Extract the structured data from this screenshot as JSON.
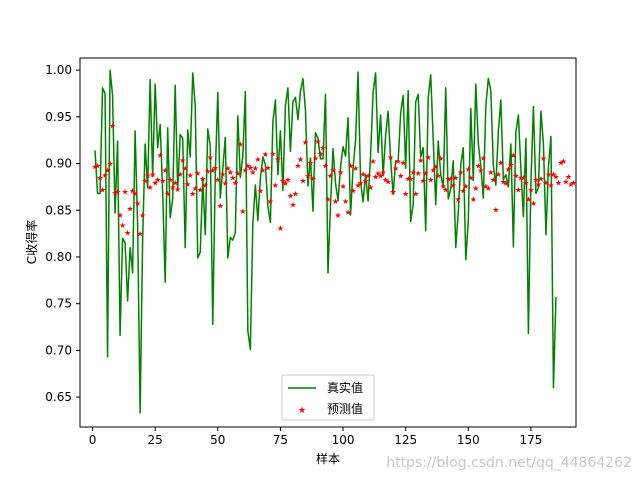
{
  "chart_data": {
    "type": "line",
    "xlabel": "样本",
    "ylabel": "C收得率",
    "xlim": [
      -5,
      193
    ],
    "ylim": [
      0.618,
      1.013
    ],
    "xticks": [
      0,
      25,
      50,
      75,
      100,
      125,
      150,
      175
    ],
    "yticks": [
      0.65,
      0.7,
      0.75,
      0.8,
      0.85,
      0.9,
      0.95,
      1.0
    ],
    "ytick_labels": [
      "0.65",
      "0.70",
      "0.75",
      "0.80",
      "0.85",
      "0.90",
      "0.95",
      "1.00"
    ],
    "legend_position": "lower center",
    "grid": false,
    "series": [
      {
        "name": "真实值",
        "style": "line",
        "color": "#008000",
        "values": [
          0.914,
          0.868,
          0.868,
          0.981,
          0.975,
          0.693,
          1.0,
          0.973,
          0.847,
          0.924,
          0.716,
          0.82,
          0.815,
          0.753,
          0.81,
          0.783,
          0.935,
          0.834,
          0.633,
          0.818,
          0.921,
          0.874,
          0.99,
          0.886,
          0.985,
          0.917,
          0.942,
          0.869,
          0.773,
          0.938,
          0.842,
          0.862,
          0.984,
          0.872,
          0.931,
          0.927,
          0.81,
          0.936,
          0.907,
          0.997,
          0.962,
          0.799,
          0.805,
          0.883,
          0.824,
          0.937,
          0.919,
          0.728,
          0.888,
          0.976,
          0.863,
          0.895,
          0.928,
          0.799,
          0.821,
          0.818,
          0.826,
          0.951,
          0.885,
          0.908,
          0.977,
          0.721,
          0.701,
          0.836,
          0.877,
          0.839,
          0.884,
          0.907,
          0.899,
          0.854,
          0.837,
          0.945,
          0.968,
          0.888,
          0.935,
          0.871,
          0.962,
          0.981,
          0.913,
          0.966,
          0.971,
          0.947,
          0.977,
          0.991,
          0.957,
          0.876,
          0.906,
          0.849,
          0.933,
          0.927,
          0.905,
          0.905,
          0.974,
          0.783,
          0.855,
          0.916,
          0.879,
          0.86,
          0.896,
          0.918,
          0.908,
          0.949,
          0.845,
          0.895,
          0.925,
          0.998,
          0.881,
          0.859,
          0.888,
          0.86,
          0.909,
          0.976,
          0.997,
          0.912,
          0.952,
          0.887,
          0.93,
          0.956,
          0.904,
          0.867,
          0.903,
          0.902,
          0.954,
          0.973,
          0.895,
          0.978,
          0.838,
          0.856,
          0.966,
          0.974,
          0.907,
          0.917,
          0.828,
          0.97,
          0.995,
          0.926,
          0.856,
          0.924,
          0.888,
          0.875,
          0.981,
          0.862,
          0.873,
          0.903,
          0.81,
          0.848,
          0.899,
          0.917,
          0.797,
          0.838,
          0.959,
          0.882,
          0.985,
          0.922,
          0.897,
          0.863,
          0.962,
          0.991,
          0.978,
          0.898,
          0.877,
          0.934,
          0.968,
          0.883,
          0.888,
          0.875,
          0.921,
          0.811,
          0.934,
          0.952,
          0.894,
          0.843,
          0.927,
          0.718,
          0.88,
          0.961,
          0.868,
          0.874,
          0.956,
          0.921,
          0.824,
          0.896,
          0.929,
          0.66,
          0.757
        ],
        "x_start": 1
      },
      {
        "name": "预测值",
        "style": "marker",
        "marker": "star",
        "color": "#ff0000",
        "values": [
          0.897,
          0.898,
          0.885,
          0.872,
          0.888,
          0.893,
          0.9,
          0.941,
          0.869,
          0.87,
          0.845,
          0.834,
          0.87,
          0.826,
          0.852,
          0.871,
          0.868,
          0.858,
          0.825,
          0.845,
          0.882,
          0.888,
          0.875,
          0.889,
          0.88,
          0.883,
          0.909,
          0.882,
          0.893,
          0.868,
          0.883,
          0.875,
          0.88,
          0.873,
          0.889,
          0.904,
          0.895,
          0.878,
          0.888,
          0.868,
          0.874,
          0.89,
          0.872,
          0.884,
          0.877,
          0.892,
          0.907,
          0.893,
          0.896,
          0.883,
          0.855,
          0.889,
          0.879,
          0.895,
          0.891,
          0.885,
          0.88,
          0.89,
          0.921,
          0.849,
          0.893,
          0.898,
          0.896,
          0.891,
          0.895,
          0.905,
          0.871,
          0.893,
          0.91,
          0.896,
          0.86,
          0.911,
          0.877,
          0.905,
          0.831,
          0.882,
          0.879,
          0.883,
          0.866,
          0.856,
          0.868,
          0.898,
          0.905,
          0.882,
          0.923,
          0.887,
          0.901,
          0.884,
          0.906,
          0.924,
          0.911,
          0.917,
          0.898,
          0.862,
          0.887,
          0.893,
          0.86,
          0.845,
          0.891,
          0.876,
          0.86,
          0.848,
          0.898,
          0.871,
          0.895,
          0.877,
          0.88,
          0.889,
          0.882,
          0.887,
          0.875,
          0.903,
          0.886,
          0.89,
          0.887,
          0.891,
          0.883,
          0.881,
          0.907,
          0.87,
          0.895,
          0.903,
          0.887,
          0.901,
          0.868,
          0.884,
          0.884,
          0.891,
          0.868,
          0.89,
          0.904,
          0.882,
          0.89,
          0.907,
          0.883,
          0.893,
          0.897,
          0.887,
          0.906,
          0.876,
          0.872,
          0.884,
          0.884,
          0.877,
          0.885,
          0.862,
          0.891,
          0.871,
          0.876,
          0.894,
          0.885,
          0.862,
          0.874,
          0.898,
          0.893,
          0.906,
          0.876,
          0.874,
          0.891,
          0.883,
          0.851,
          0.889,
          0.901,
          0.881,
          0.879,
          0.894,
          0.899,
          0.909,
          0.887,
          0.872,
          0.885,
          0.885,
          0.88,
          0.862,
          0.872,
          0.858,
          0.883,
          0.878,
          0.884,
          0.906,
          0.88,
          0.889,
          0.877,
          0.889,
          0.886,
          0.88,
          0.901,
          0.903,
          0.881,
          0.886,
          0.878,
          0.88
        ],
        "x_start": 1
      }
    ]
  },
  "watermark": "https://blog.csdn.net/qq_44864262"
}
